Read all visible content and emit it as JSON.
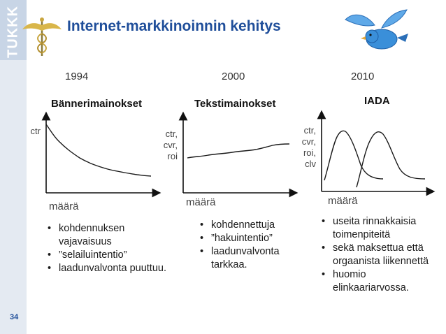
{
  "logo": {
    "text": "TUKKK"
  },
  "slide": {
    "title": "Internet-markkinoinnin kehitys",
    "page_number": "34"
  },
  "columns": [
    {
      "year": "1994",
      "heading": "Bännerimainokset",
      "y_axis_lines": [
        "ctr"
      ],
      "x_axis_label": "määrä",
      "bullets": [
        "kohdennuksen vajavaisuus",
        "”selailuintentio”",
        "laadunvalvonta puuttuu."
      ]
    },
    {
      "year": "2000",
      "heading": "Tekstimainokset",
      "y_axis_lines": [
        "ctr,",
        "cvr,",
        "roi"
      ],
      "x_axis_label": "määrä",
      "bullets": [
        "kohdennettuja",
        "”hakuintentio”",
        "laadunvalvonta tarkkaa."
      ]
    },
    {
      "year": "2010",
      "heading": "IADA",
      "y_axis_lines": [
        "ctr,",
        "cvr,",
        "roi,",
        "clv"
      ],
      "x_axis_label": "määrä",
      "bullets": [
        "useita rinnakkaisia toimenpiteitä",
        "sekä maksettua että orgaanista liikennettä",
        "huomio elinkaariarvossa."
      ]
    }
  ],
  "colors": {
    "title": "#1f4e9a",
    "logo_strip": "#e4eaf2",
    "bird": "#3a8fd9",
    "axis": "#111111",
    "curve": "#1a1a1a"
  },
  "icons": [
    "caduceus-icon",
    "bluebird-icon"
  ]
}
